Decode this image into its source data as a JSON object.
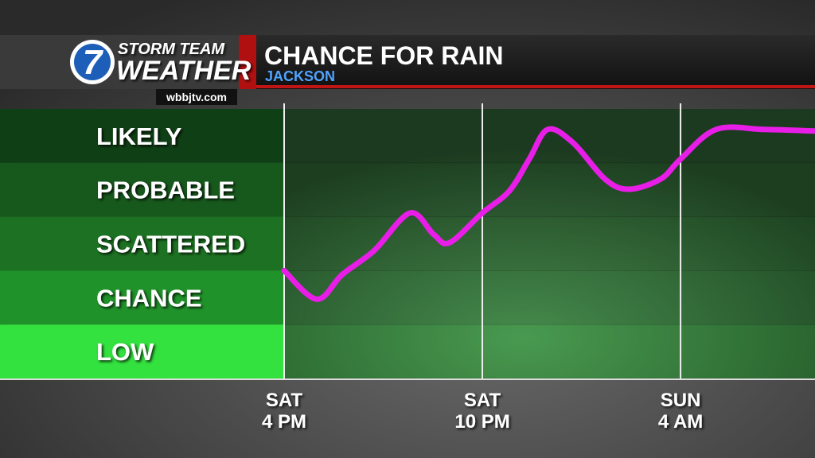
{
  "branding": {
    "logo": "7",
    "brand_top": "STORM TEAM",
    "brand_bottom": "WEATHER",
    "website": "wbbjtv.com"
  },
  "chart_data": {
    "type": "line",
    "title": "CHANCE FOR RAIN",
    "subtitle": "JACKSON",
    "x": [
      0,
      0.99,
      1.76,
      2.72,
      3.81,
      4.53,
      5.01,
      6.0,
      6.82,
      7.42,
      7.98,
      8.75,
      9.71,
      10.43,
      11.4,
      12.0,
      13.08,
      14.53,
      16.07
    ],
    "series": [
      {
        "color": "#e81ee8",
        "values": [
          2.0,
          1.47,
          1.93,
          2.37,
          3.07,
          2.67,
          2.52,
          3.07,
          3.48,
          4.07,
          4.62,
          4.37,
          3.7,
          3.51,
          3.7,
          4.07,
          4.62,
          4.62,
          4.59
        ]
      }
    ],
    "xlim": [
      0,
      16.07
    ],
    "xticks": [
      {
        "value": 0,
        "label": [
          "SAT",
          "4 PM"
        ]
      },
      {
        "value": 6,
        "label": [
          "SAT",
          "10 PM"
        ]
      },
      {
        "value": 12,
        "label": [
          "SUN",
          "4 AM"
        ]
      }
    ],
    "ylim": [
      0,
      5
    ],
    "yticks": [
      {
        "value": 4.5,
        "label": "LIKELY"
      },
      {
        "value": 3.5,
        "label": "PROBABLE"
      },
      {
        "value": 2.5,
        "label": "SCATTERED"
      },
      {
        "value": 1.5,
        "label": "CHANCE"
      },
      {
        "value": 0.5,
        "label": "LOW"
      }
    ],
    "band_colors": [
      "#0f3f15",
      "#17581c",
      "#1c7222",
      "#20922a",
      "#33e23e"
    ],
    "grid": true
  }
}
